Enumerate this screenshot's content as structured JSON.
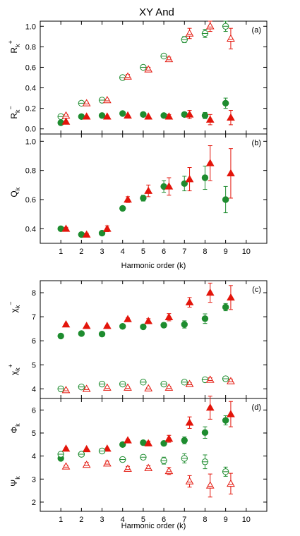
{
  "title": "XY And",
  "colors": {
    "green": "#1e8c2f",
    "red": "#e3150b"
  },
  "chart_data": [
    {
      "id": "a",
      "tag": "(a)",
      "type": "scatter",
      "xlim": [
        0,
        11
      ],
      "ylim": [
        -0.05,
        1.05
      ],
      "yticks": [
        0.0,
        0.2,
        0.4,
        0.6,
        0.8,
        1.0
      ],
      "ytick_labels": [
        "0.0",
        "0.2",
        "0.4",
        "0.6",
        "0.8",
        "1.0"
      ],
      "ylabels": [
        {
          "base": "R",
          "sub": "k",
          "sup": "+",
          "at": 0.8
        },
        {
          "base": "R",
          "sub": "k",
          "sup": "−",
          "at": 0.16
        }
      ],
      "series": [
        {
          "marker": "circle",
          "filled": false,
          "color": "green",
          "x": [
            1,
            2,
            3,
            4,
            5,
            6,
            7,
            8,
            9
          ],
          "y": [
            0.12,
            0.25,
            0.28,
            0.5,
            0.6,
            0.71,
            0.87,
            0.93,
            1.0
          ],
          "err": [
            0.01,
            0.01,
            0.01,
            0.02,
            0.02,
            0.02,
            0.03,
            0.04,
            0.05
          ]
        },
        {
          "marker": "triangle",
          "filled": false,
          "color": "red",
          "x": [
            1.25,
            2.25,
            3.25,
            4.25,
            5.25,
            6.25,
            7.25,
            8.25,
            9.25
          ],
          "y": [
            0.13,
            0.25,
            0.28,
            0.51,
            0.58,
            0.68,
            0.93,
            1.0,
            0.88
          ],
          "err": [
            0.01,
            0.01,
            0.01,
            0.02,
            0.02,
            0.02,
            0.05,
            0.05,
            0.1
          ]
        },
        {
          "marker": "circle",
          "filled": true,
          "color": "green",
          "x": [
            1,
            2,
            3,
            4,
            5,
            6,
            7,
            8,
            9
          ],
          "y": [
            0.06,
            0.12,
            0.13,
            0.15,
            0.14,
            0.13,
            0.14,
            0.13,
            0.25
          ],
          "err": [
            0,
            0,
            0,
            0,
            0,
            0,
            0.02,
            0.03,
            0.05
          ]
        },
        {
          "marker": "triangle",
          "filled": true,
          "color": "red",
          "x": [
            1.25,
            2.25,
            3.25,
            4.25,
            5.25,
            6.25,
            7.25,
            8.25,
            9.25
          ],
          "y": [
            0.07,
            0.12,
            0.12,
            0.13,
            0.12,
            0.12,
            0.14,
            0.09,
            0.11
          ],
          "err": [
            0,
            0,
            0,
            0,
            0,
            0.02,
            0.04,
            0.05,
            0.07
          ]
        }
      ]
    },
    {
      "id": "b",
      "tag": "(b)",
      "type": "scatter",
      "xlim": [
        0,
        11
      ],
      "ylim": [
        0.3,
        1.05
      ],
      "yticks": [
        0.4,
        0.6,
        0.8,
        1.0
      ],
      "ytick_labels": [
        "0.4",
        "0.6",
        "0.8",
        "1.0"
      ],
      "ylabels": [
        {
          "base": "Q",
          "sub": "k",
          "sup": "",
          "at": 0.65
        }
      ],
      "xlabel": "Harmonic order (k)",
      "series": [
        {
          "marker": "circle",
          "filled": true,
          "color": "green",
          "x": [
            1,
            2,
            3,
            4,
            5,
            6,
            7,
            8,
            9
          ],
          "y": [
            0.4,
            0.36,
            0.37,
            0.54,
            0.61,
            0.69,
            0.71,
            0.75,
            0.6
          ],
          "err": [
            0,
            0,
            0.01,
            0.01,
            0.02,
            0.04,
            0.05,
            0.08,
            0.09
          ]
        },
        {
          "marker": "triangle",
          "filled": true,
          "color": "red",
          "x": [
            1.25,
            2.25,
            3.25,
            4.25,
            5.25,
            6.25,
            7.25,
            8.25,
            9.25
          ],
          "y": [
            0.4,
            0.36,
            0.4,
            0.6,
            0.66,
            0.69,
            0.74,
            0.85,
            0.78
          ],
          "err": [
            0.01,
            0.01,
            0.02,
            0.02,
            0.04,
            0.06,
            0.08,
            0.12,
            0.17
          ]
        }
      ]
    },
    {
      "id": "c",
      "tag": "(c)",
      "type": "scatter",
      "xlim": [
        0,
        11
      ],
      "ylim": [
        3.6,
        8.5
      ],
      "yticks": [
        4,
        5,
        6,
        7,
        8
      ],
      "ytick_labels": [
        "4",
        "5",
        "6",
        "7",
        "8"
      ],
      "ylabels": [
        {
          "base": "χ",
          "sub": "k",
          "sup": "−",
          "at": 7.4
        },
        {
          "base": "χ",
          "sub": "k",
          "sup": "+",
          "at": 4.8
        }
      ],
      "series": [
        {
          "marker": "circle",
          "filled": true,
          "color": "green",
          "x": [
            1,
            2,
            3,
            4,
            5,
            6,
            7,
            8,
            9
          ],
          "y": [
            6.2,
            6.3,
            6.28,
            6.6,
            6.58,
            6.65,
            6.68,
            6.92,
            7.4
          ],
          "err": [
            0,
            0,
            0,
            0.05,
            0.05,
            0.1,
            0.15,
            0.2,
            0.15
          ]
        },
        {
          "marker": "triangle",
          "filled": true,
          "color": "red",
          "x": [
            1.25,
            2.25,
            3.25,
            4.25,
            5.25,
            6.25,
            7.25,
            8.25,
            9.25
          ],
          "y": [
            6.68,
            6.62,
            6.62,
            6.9,
            6.82,
            6.98,
            7.6,
            8.0,
            7.8
          ],
          "err": [
            0,
            0,
            0,
            0.05,
            0.1,
            0.15,
            0.2,
            0.4,
            0.5
          ]
        },
        {
          "marker": "circle",
          "filled": false,
          "color": "green",
          "x": [
            1,
            2,
            3,
            4,
            5,
            6,
            7,
            8,
            9
          ],
          "y": [
            4.0,
            4.08,
            4.2,
            4.2,
            4.28,
            4.2,
            4.28,
            4.38,
            4.42
          ],
          "err": [
            0.05,
            0.05,
            0.05,
            0.05,
            0.06,
            0.06,
            0.07,
            0.08,
            0.1
          ]
        },
        {
          "marker": "triangle",
          "filled": false,
          "color": "red",
          "x": [
            1.25,
            2.25,
            3.25,
            4.25,
            5.25,
            6.25,
            7.25,
            8.25,
            9.25
          ],
          "y": [
            3.95,
            4.0,
            4.05,
            4.05,
            4.02,
            4.05,
            4.2,
            4.38,
            4.32
          ],
          "err": [
            0.03,
            0.03,
            0.03,
            0.04,
            0.04,
            0.05,
            0.06,
            0.08,
            0.08
          ]
        }
      ]
    },
    {
      "id": "d",
      "tag": "(d)",
      "type": "scatter",
      "xlim": [
        0,
        11
      ],
      "ylim": [
        1.6,
        6.5
      ],
      "yticks": [
        2,
        3,
        4,
        5,
        6
      ],
      "ytick_labels": [
        "2",
        "3",
        "4",
        "5",
        "6"
      ],
      "ylabels": [
        {
          "base": "Φ",
          "sub": "k",
          "sup": "",
          "at": 5.2
        },
        {
          "base": "Ψ",
          "sub": "k",
          "sup": "",
          "at": 2.9
        }
      ],
      "xlabel": "Harmonic order (k)",
      "series": [
        {
          "marker": "circle",
          "filled": true,
          "color": "green",
          "x": [
            1,
            2,
            3,
            4,
            5,
            6,
            7,
            8,
            9
          ],
          "y": [
            3.9,
            4.08,
            4.22,
            4.5,
            4.58,
            4.55,
            4.68,
            5.02,
            5.55
          ],
          "err": [
            0,
            0,
            0.05,
            0.05,
            0.05,
            0.1,
            0.15,
            0.25,
            0.2
          ]
        },
        {
          "marker": "triangle",
          "filled": true,
          "color": "red",
          "x": [
            1.25,
            2.25,
            3.25,
            4.25,
            5.25,
            6.25,
            7.25,
            8.25,
            9.25
          ],
          "y": [
            4.32,
            4.3,
            4.32,
            4.68,
            4.55,
            4.75,
            5.45,
            6.1,
            5.82
          ],
          "err": [
            0,
            0,
            0,
            0.05,
            0.1,
            0.15,
            0.25,
            0.5,
            0.55
          ]
        },
        {
          "marker": "circle",
          "filled": false,
          "color": "green",
          "x": [
            1,
            2,
            3,
            4,
            5,
            6,
            7,
            8,
            9
          ],
          "y": [
            4.08,
            4.08,
            4.22,
            3.85,
            3.95,
            3.8,
            3.9,
            3.75,
            3.32
          ],
          "err": [
            0.05,
            0.05,
            0.05,
            0.1,
            0.1,
            0.15,
            0.2,
            0.3,
            0.2
          ]
        },
        {
          "marker": "triangle",
          "filled": false,
          "color": "red",
          "x": [
            1.25,
            2.25,
            3.25,
            4.25,
            5.25,
            6.25,
            7.25,
            8.25,
            9.25
          ],
          "y": [
            3.55,
            3.62,
            3.68,
            3.45,
            3.48,
            3.35,
            2.9,
            2.72,
            2.8
          ],
          "err": [
            0.05,
            0.1,
            0.1,
            0.1,
            0.1,
            0.15,
            0.25,
            0.5,
            0.45
          ]
        }
      ]
    }
  ],
  "xticks": [
    1,
    2,
    3,
    4,
    5,
    6,
    7,
    8,
    9,
    10
  ],
  "xtick_labels": [
    "1",
    "2",
    "3",
    "4",
    "5",
    "6",
    "7",
    "8",
    "9",
    "10"
  ]
}
